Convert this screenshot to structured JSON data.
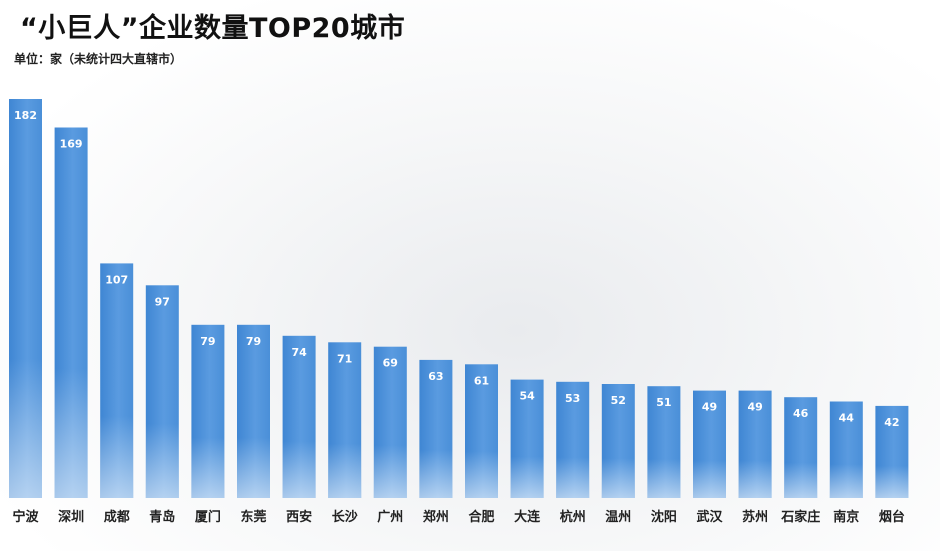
{
  "chart_data": {
    "type": "bar",
    "title": "“小巨人”企业数量TOP20城市",
    "subtitle": "单位：家（未统计四大直辖市）",
    "categories": [
      "宁波",
      "深圳",
      "成都",
      "青岛",
      "厦门",
      "东莞",
      "西安",
      "长沙",
      "广州",
      "郑州",
      "合肥",
      "大连",
      "杭州",
      "温州",
      "沈阳",
      "武汉",
      "苏州",
      "石家庄",
      "南京",
      "烟台"
    ],
    "values": [
      182,
      169,
      107,
      97,
      79,
      79,
      74,
      71,
      69,
      63,
      61,
      54,
      53,
      52,
      51,
      49,
      49,
      46,
      44,
      42
    ],
    "ylim": [
      0,
      182
    ],
    "grid": false,
    "colors": {
      "bar": "#4a8fd8",
      "bar_light": "#6aa6e6",
      "value_label": "#ffffff"
    }
  }
}
